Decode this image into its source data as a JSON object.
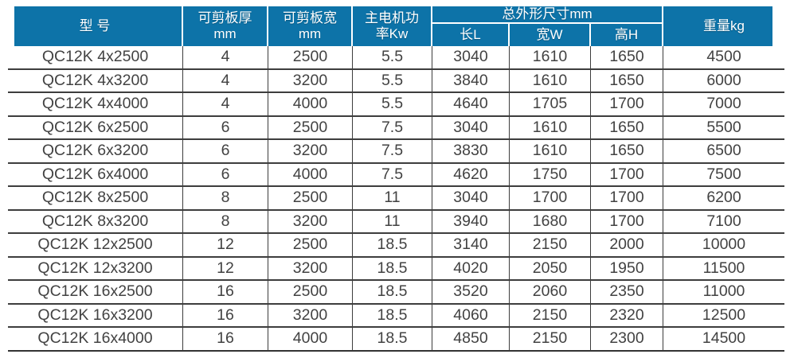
{
  "colors": {
    "header_bg": "#0d73a8",
    "header_text": "#ffffff",
    "body_text": "#424242",
    "grid_line": "#3d3d3d",
    "page_bg": "#ffffff"
  },
  "table": {
    "header": {
      "model": "型 号",
      "thickness_line1": "可剪板厚",
      "thickness_line2": "mm",
      "width_line1": "可剪板宽",
      "width_line2": "mm",
      "power_line1": "主电机功",
      "power_line2": "率Kw",
      "dims_group": "总外形尺寸mm",
      "dims_length": "长L",
      "dims_width": "宽W",
      "dims_height": "高H",
      "weight": "重量kg"
    },
    "column_keys": [
      "model",
      "shear-thickness-mm",
      "shear-width-mm",
      "motor-power-kw",
      "length-l",
      "width-w",
      "height-h",
      "weight-kg"
    ],
    "rows": [
      [
        "QC12K 4x2500",
        "4",
        "2500",
        "5.5",
        "3040",
        "1610",
        "1650",
        "4500"
      ],
      [
        "QC12K 4x3200",
        "4",
        "3200",
        "5.5",
        "3840",
        "1610",
        "1650",
        "6000"
      ],
      [
        "QC12K 4x4000",
        "4",
        "4000",
        "5.5",
        "4640",
        "1705",
        "1700",
        "7000"
      ],
      [
        "QC12K 6x2500",
        "6",
        "2500",
        "7.5",
        "3040",
        "1610",
        "1650",
        "5500"
      ],
      [
        "QC12K 6x3200",
        "6",
        "3200",
        "7.5",
        "3830",
        "1610",
        "1650",
        "6500"
      ],
      [
        "QC12K 6x4000",
        "6",
        "4000",
        "7.5",
        "4620",
        "1750",
        "1700",
        "7500"
      ],
      [
        "QC12K 8x2500",
        "8",
        "2500",
        "11",
        "3040",
        "1700",
        "1700",
        "6200"
      ],
      [
        "QC12K 8x3200",
        "8",
        "3200",
        "11",
        "3940",
        "1680",
        "1700",
        "7100"
      ],
      [
        "QC12K 12x2500",
        "12",
        "2500",
        "18.5",
        "3140",
        "2150",
        "2000",
        "10000"
      ],
      [
        "QC12K 12x3200",
        "12",
        "3200",
        "18.5",
        "4020",
        "2050",
        "1950",
        "11500"
      ],
      [
        "QC12K 16x2500",
        "16",
        "2500",
        "18.5",
        "3520",
        "2060",
        "2350",
        "11000"
      ],
      [
        "QC12K 16x3200",
        "16",
        "3200",
        "18.5",
        "4060",
        "2150",
        "2320",
        "12500"
      ],
      [
        "QC12K 16x4000",
        "16",
        "4000",
        "18.5",
        "4850",
        "2150",
        "2300",
        "14500"
      ]
    ]
  }
}
